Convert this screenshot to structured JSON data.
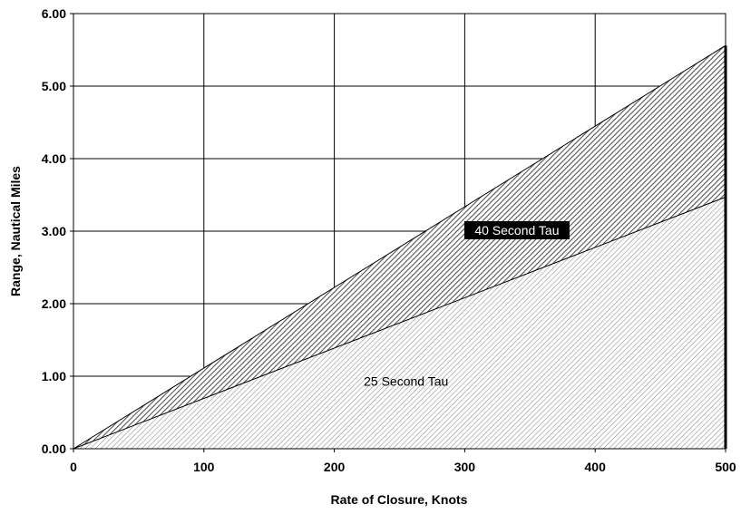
{
  "chart_data": {
    "type": "area",
    "xlabel": "Rate of Closure, Knots",
    "ylabel": "Range, Nautical Miles",
    "xlim": [
      0,
      500
    ],
    "ylim": [
      0,
      6
    ],
    "x_ticks": [
      "0",
      "100",
      "200",
      "300",
      "400",
      "500"
    ],
    "y_ticks": [
      "0.00",
      "1.00",
      "2.00",
      "3.00",
      "4.00",
      "5.00",
      "6.00"
    ],
    "grid": true,
    "series": [
      {
        "name": "25 Second Tau",
        "x": [
          0,
          500
        ],
        "y": [
          0,
          3.47
        ],
        "fill": "light-hatch"
      },
      {
        "name": "40 Second Tau",
        "x": [
          0,
          500
        ],
        "y": [
          0,
          5.56
        ],
        "fill": "dark-hatch"
      }
    ],
    "annotations": [
      {
        "text": "40 Second Tau",
        "x": 340,
        "y": 2.95,
        "style": "inverse"
      },
      {
        "text": "25 Second Tau",
        "x": 255,
        "y": 0.87,
        "style": "plain"
      }
    ]
  }
}
